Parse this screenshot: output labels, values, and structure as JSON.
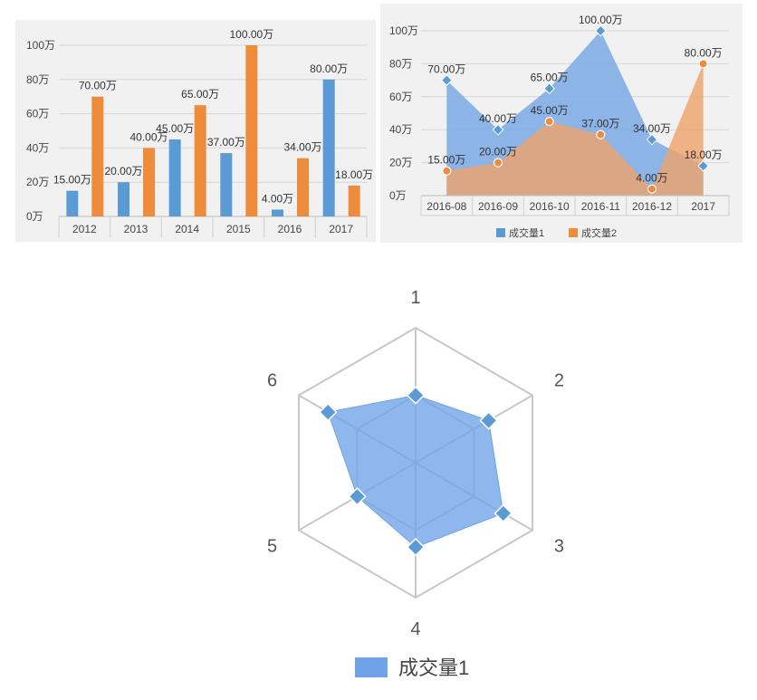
{
  "chart_data": [
    {
      "type": "bar",
      "categories": [
        "2012",
        "2013",
        "2014",
        "2015",
        "2016",
        "2017"
      ],
      "series": [
        {
          "values": [
            15,
            20,
            45,
            37,
            4,
            80
          ],
          "labels": [
            "15.00万",
            "20.00万",
            "45.00万",
            "37.00万",
            "4.00万",
            "80.00万"
          ],
          "color": "#5b9bd5"
        },
        {
          "values": [
            70,
            40,
            65,
            100,
            34,
            18
          ],
          "labels": [
            "70.00万",
            "40.00万",
            "65.00万",
            "100.00万",
            "34.00万",
            "18.00万"
          ],
          "color": "#ed8c3a"
        }
      ],
      "y_ticks": [
        "0万",
        "20万",
        "40万",
        "60万",
        "80万",
        "100万"
      ],
      "ylim": [
        0,
        100
      ],
      "grid": true
    },
    {
      "type": "area",
      "categories": [
        "2016-08",
        "2016-09",
        "2016-10",
        "2016-11",
        "2016-12",
        "2017"
      ],
      "series": [
        {
          "name": "成交量1",
          "values": [
            70,
            40,
            65,
            100,
            34,
            18
          ],
          "labels": [
            "70.00万",
            "40.00万",
            "65.00万",
            "100.00万",
            "34.00万",
            "18.00万"
          ],
          "color": "#7aa9e4"
        },
        {
          "name": "成交量2",
          "values": [
            15,
            20,
            45,
            37,
            4,
            80
          ],
          "labels": [
            "15.00万",
            "20.00万",
            "45.00万",
            "37.00万",
            "4.00万",
            "80.00万"
          ],
          "color": "#eda36a"
        }
      ],
      "y_ticks": [
        "0万",
        "20万",
        "40万",
        "60万",
        "80万",
        "100万"
      ],
      "ylim": [
        0,
        100
      ],
      "grid": true,
      "legend": "bottom"
    },
    {
      "type": "radar",
      "axes": [
        "1",
        "2",
        "3",
        "4",
        "5",
        "6"
      ],
      "series": [
        {
          "name": "成交量1",
          "values": [
            2,
            2.5,
            3,
            2.5,
            2,
            3
          ],
          "color": "#6ea3e8"
        }
      ],
      "rmax": 4,
      "rings": 2,
      "legend": "bottom"
    }
  ]
}
